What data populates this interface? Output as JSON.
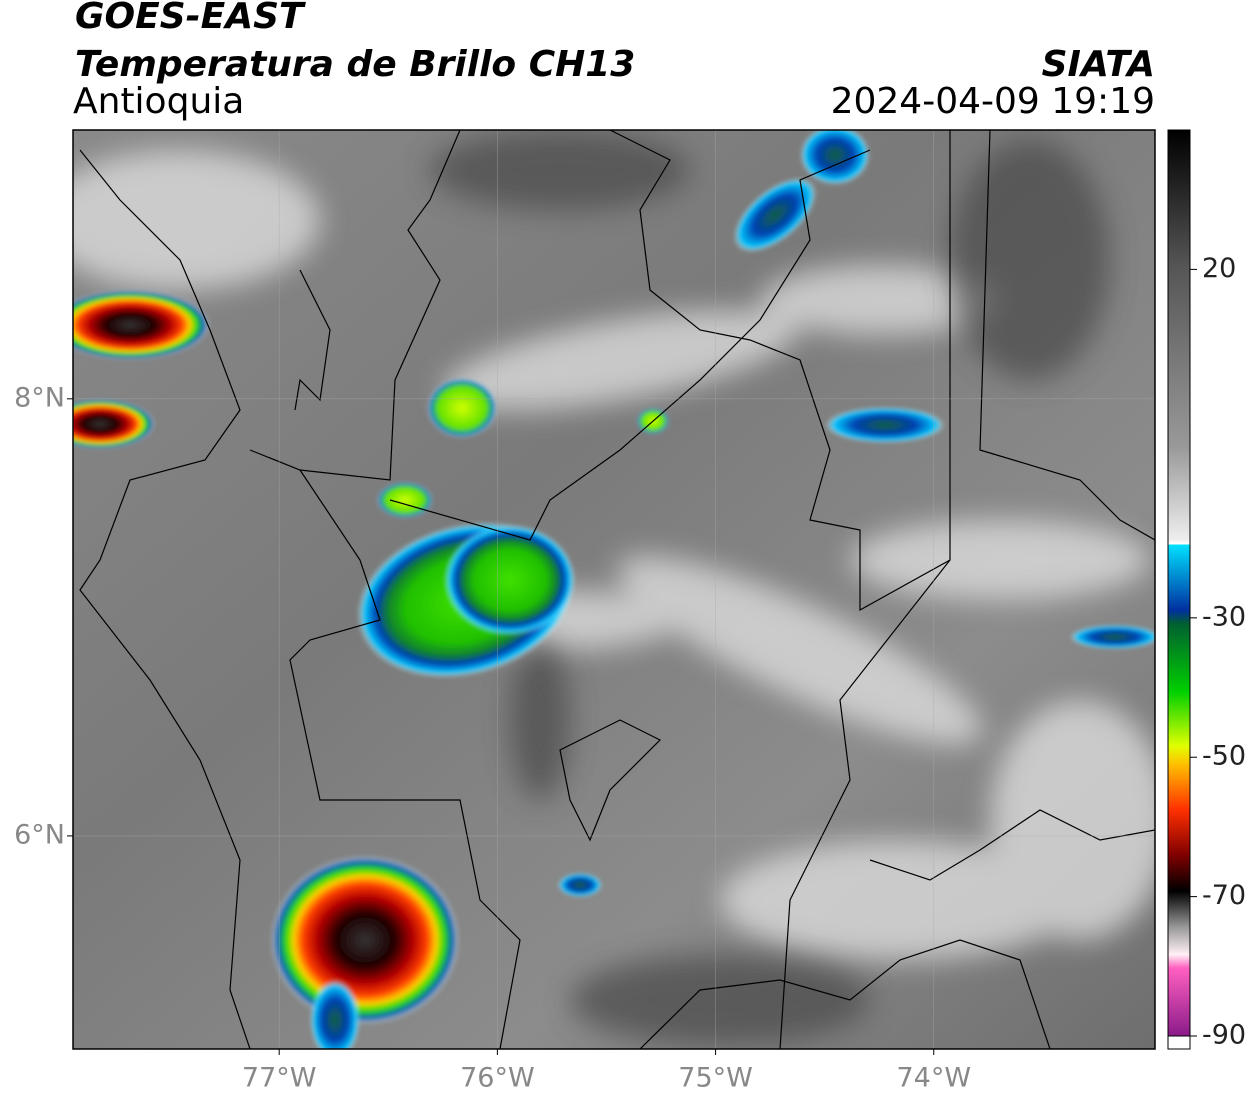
{
  "map": {
    "title": "GOES-EAST",
    "subtitle": "Temperatura de Brillo CH13",
    "region": "Antioquia",
    "source": "SIATA",
    "datetime": "2024-04-09 19:19",
    "xlim": [
      -77.945,
      -72.986
    ],
    "ylim": [
      5.025,
      9.23
    ],
    "xticks": [
      {
        "value": -77,
        "label": "77°W"
      },
      {
        "value": -76,
        "label": "76°W"
      },
      {
        "value": -75,
        "label": "75°W"
      },
      {
        "value": -74,
        "label": "74°W"
      }
    ],
    "yticks": [
      {
        "value": 8,
        "label": "8°N"
      },
      {
        "value": 6,
        "label": "6°N"
      }
    ],
    "colorbar": {
      "lim": [
        -90,
        40
      ],
      "ticks": [
        20,
        -30,
        -50,
        -70,
        -90
      ]
    }
  }
}
